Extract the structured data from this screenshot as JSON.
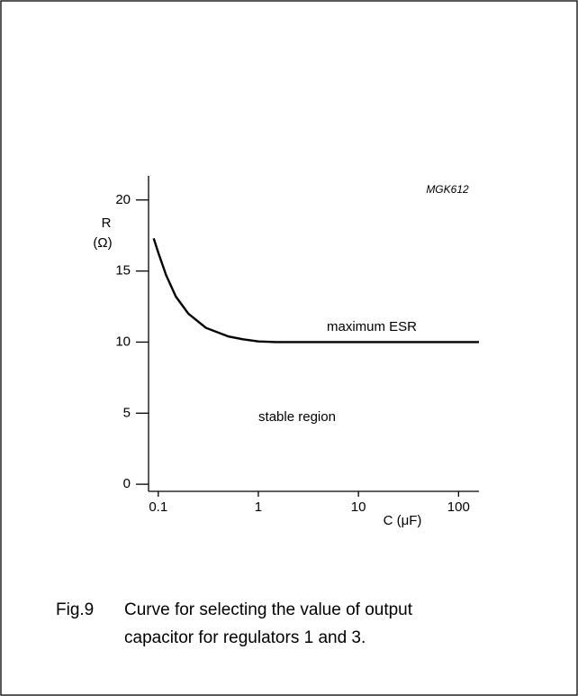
{
  "chart_data": {
    "type": "line",
    "id": "MGK612",
    "x_label": "C (μF)",
    "y_label": [
      "R",
      "(Ω)"
    ],
    "x": [
      0.09,
      0.1,
      0.12,
      0.15,
      0.2,
      0.3,
      0.5,
      0.7,
      1,
      1.5,
      10,
      100,
      160
    ],
    "series": [
      {
        "color": "#000000",
        "values": [
          17.3,
          16.3,
          14.7,
          13.2,
          12.0,
          11.0,
          10.4,
          10.2,
          10.05,
          10,
          10,
          10,
          10
        ]
      }
    ],
    "xlim": [
      0.08,
      160
    ],
    "xlog": true,
    "xticks": [
      0.1,
      1,
      10,
      100
    ],
    "ylim": [
      -0.5,
      21.7
    ],
    "yticks": [
      0,
      5,
      10,
      15,
      20
    ],
    "annotations": [
      "maximum ESR",
      "stable region"
    ]
  },
  "caption": {
    "label": "Fig.9",
    "lines": [
      "Curve for selecting the value of output",
      "capacitor for regulators 1 and 3."
    ]
  }
}
